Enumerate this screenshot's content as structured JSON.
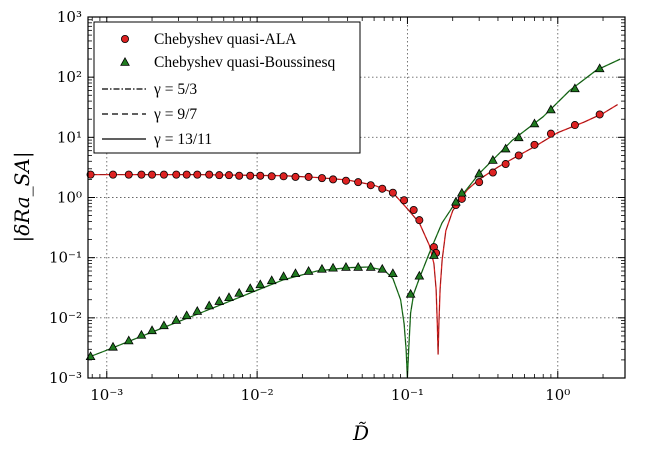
{
  "chart_data": {
    "type": "scatter",
    "title": "",
    "xlabel": "D̃",
    "ylabel": "|δRa_SA|",
    "xscale": "log",
    "yscale": "log",
    "xlim": [
      0.00075,
      2.8
    ],
    "ylim": [
      0.001,
      1000
    ],
    "xtick_labels": [
      "10⁻³",
      "10⁻²",
      "10⁻¹",
      "10⁰"
    ],
    "ytick_labels": [
      "10⁻³",
      "10⁻²",
      "10⁻¹",
      "10⁰",
      "10¹",
      "10²",
      "10³"
    ],
    "grid": true,
    "legend_position": "top-left",
    "legend": [
      {
        "label": "Chebyshev quasi-ALA",
        "kind": "marker-circle",
        "color": "#dd2222"
      },
      {
        "label": "Chebyshev quasi-Boussinesq",
        "kind": "marker-triangle",
        "color": "#1f7a1f"
      },
      {
        "label": "γ = 5/3",
        "kind": "line-dashdot"
      },
      {
        "label": "γ = 9/7",
        "kind": "line-dashed"
      },
      {
        "label": "γ = 13/11",
        "kind": "line-solid"
      }
    ],
    "series": [
      {
        "name": "Chebyshev quasi-ALA",
        "marker": "circle",
        "color": "#dd2222",
        "x": [
          0.00078,
          0.0011,
          0.0014,
          0.0017,
          0.002,
          0.0024,
          0.0029,
          0.0034,
          0.004,
          0.0048,
          0.0056,
          0.0065,
          0.0076,
          0.009,
          0.0105,
          0.0125,
          0.015,
          0.018,
          0.022,
          0.027,
          0.032,
          0.039,
          0.047,
          0.057,
          0.068,
          0.08,
          0.095,
          0.11,
          0.12,
          0.15,
          0.155,
          0.21,
          0.23,
          0.3,
          0.37,
          0.45,
          0.55,
          0.7,
          0.9,
          1.3,
          1.9
        ],
        "y": [
          2.4,
          2.4,
          2.4,
          2.4,
          2.4,
          2.4,
          2.4,
          2.4,
          2.4,
          2.4,
          2.35,
          2.35,
          2.3,
          2.3,
          2.3,
          2.25,
          2.25,
          2.2,
          2.2,
          2.1,
          2.0,
          1.9,
          1.8,
          1.6,
          1.4,
          1.2,
          0.9,
          0.62,
          0.42,
          0.15,
          0.12,
          0.75,
          0.95,
          1.8,
          2.6,
          3.6,
          5.0,
          7.5,
          11.5,
          16,
          24
        ]
      },
      {
        "name": "Chebyshev quasi-Boussinesq",
        "marker": "triangle",
        "color": "#1f7a1f",
        "x": [
          0.00078,
          0.0011,
          0.0014,
          0.0017,
          0.002,
          0.0024,
          0.0029,
          0.0034,
          0.004,
          0.0048,
          0.0056,
          0.0065,
          0.0076,
          0.009,
          0.0105,
          0.0125,
          0.015,
          0.018,
          0.022,
          0.027,
          0.032,
          0.039,
          0.047,
          0.057,
          0.068,
          0.08,
          0.105,
          0.12,
          0.15,
          0.21,
          0.23,
          0.3,
          0.37,
          0.45,
          0.55,
          0.7,
          0.9,
          1.3,
          1.9
        ],
        "y": [
          0.0023,
          0.0033,
          0.0042,
          0.0052,
          0.0062,
          0.0075,
          0.0092,
          0.011,
          0.013,
          0.016,
          0.019,
          0.022,
          0.026,
          0.031,
          0.036,
          0.042,
          0.049,
          0.055,
          0.06,
          0.065,
          0.068,
          0.07,
          0.07,
          0.07,
          0.065,
          0.055,
          0.025,
          0.05,
          0.11,
          0.85,
          1.2,
          2.5,
          4.2,
          6.5,
          10,
          17,
          29,
          65,
          140
        ]
      }
    ],
    "curves": [
      {
        "name": "ALA fit",
        "color": "#dd2222",
        "x": [
          0.00078,
          0.001,
          0.002,
          0.004,
          0.008,
          0.015,
          0.025,
          0.04,
          0.06,
          0.08,
          0.1,
          0.12,
          0.14,
          0.15,
          0.155,
          0.158,
          0.16,
          0.162,
          0.165,
          0.17,
          0.18,
          0.2,
          0.25,
          0.3,
          0.4,
          0.5,
          0.7,
          1.0,
          1.5,
          2.0,
          2.5
        ],
        "y": [
          2.4,
          2.4,
          2.4,
          2.4,
          2.35,
          2.3,
          2.15,
          1.95,
          1.6,
          1.2,
          0.65,
          0.38,
          0.16,
          0.08,
          0.03,
          0.008,
          0.0025,
          0.008,
          0.03,
          0.09,
          0.28,
          0.6,
          1.35,
          2.0,
          3.2,
          4.4,
          7.0,
          12,
          18,
          25,
          35
        ]
      },
      {
        "name": "Boussinesq fit",
        "color": "#1f7a1f",
        "x": [
          0.00075,
          0.001,
          0.002,
          0.004,
          0.008,
          0.015,
          0.025,
          0.04,
          0.055,
          0.07,
          0.08,
          0.09,
          0.095,
          0.098,
          0.1,
          0.102,
          0.105,
          0.11,
          0.12,
          0.14,
          0.17,
          0.2,
          0.3,
          0.5,
          0.8,
          1.2,
          1.8,
          2.6
        ],
        "y": [
          0.0022,
          0.0029,
          0.0058,
          0.0115,
          0.023,
          0.043,
          0.06,
          0.068,
          0.07,
          0.062,
          0.045,
          0.02,
          0.008,
          0.003,
          0.001,
          0.003,
          0.012,
          0.025,
          0.045,
          0.12,
          0.38,
          0.7,
          2.5,
          9,
          22,
          60,
          130,
          200
        ]
      }
    ]
  }
}
